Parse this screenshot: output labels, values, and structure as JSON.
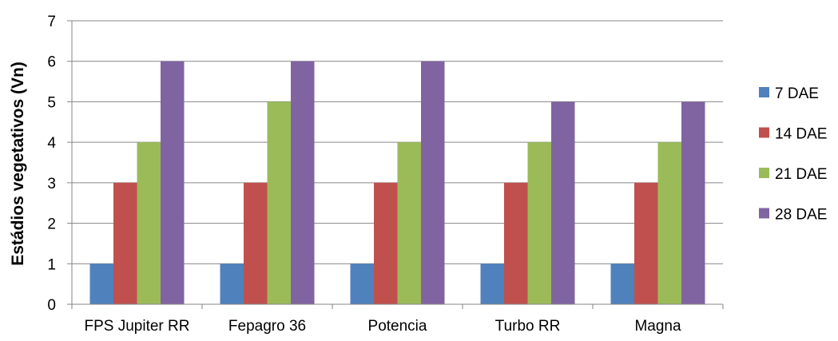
{
  "chart_data": {
    "type": "bar",
    "title": "",
    "xlabel": "",
    "ylabel": "Estádios vegetativos (Vn)",
    "ylim": [
      0,
      7
    ],
    "yticks": [
      "0",
      "1",
      "2",
      "3",
      "4",
      "5",
      "6",
      "7"
    ],
    "grid": true,
    "legend_position": "right",
    "categories": [
      "FPS Jupiter RR",
      "Fepagro 36",
      "Potencia",
      "Turbo RR",
      "Magna"
    ],
    "series": [
      {
        "name": "7 DAE",
        "color": "#4F81BD",
        "values": [
          1,
          1,
          1,
          1,
          1
        ]
      },
      {
        "name": "14 DAE",
        "color": "#C0504D",
        "values": [
          3,
          3,
          3,
          3,
          3
        ]
      },
      {
        "name": "21 DAE",
        "color": "#9BBB59",
        "values": [
          4,
          5,
          4,
          4,
          4
        ]
      },
      {
        "name": "28 DAE",
        "color": "#8064A2",
        "values": [
          6,
          6,
          6,
          5,
          5
        ]
      }
    ]
  }
}
